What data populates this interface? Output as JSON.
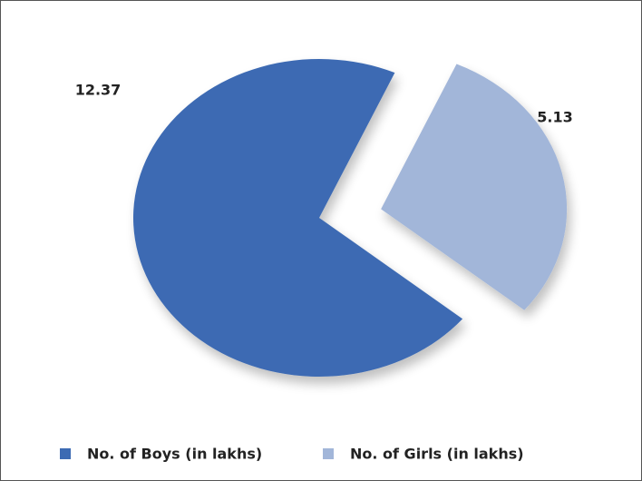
{
  "chart_data": {
    "type": "pie",
    "categories": [
      "No. of Boys (in lakhs)",
      "No. of Girls (in lakhs)"
    ],
    "values": [
      12.37,
      5.13
    ],
    "colors": [
      "#3d6bb3",
      "#a2b6d9"
    ],
    "exploded": [
      false,
      true
    ],
    "legend": "bottom"
  }
}
